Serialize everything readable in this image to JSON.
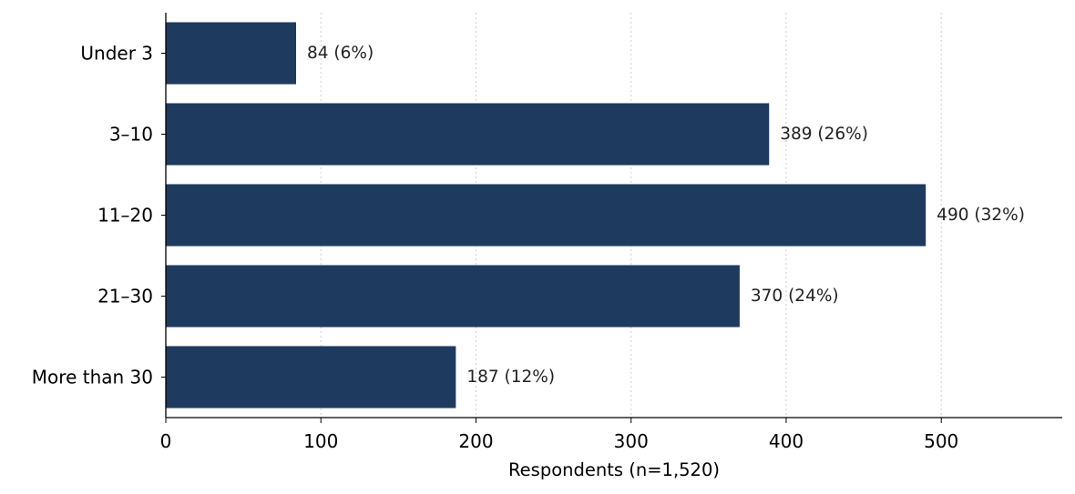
{
  "chart_data": {
    "type": "bar",
    "orientation": "horizontal",
    "categories": [
      "Under 3",
      "3–10",
      "11–20",
      "21–30",
      "More than 30"
    ],
    "values": [
      84,
      389,
      490,
      370,
      187
    ],
    "value_labels": [
      "84  (6%)",
      "389  (26%)",
      "490  (32%)",
      "370  (24%)",
      "187  (12%)"
    ],
    "title": "",
    "xlabel": "Respondents (n=1,520)",
    "ylabel": "",
    "xlim": [
      0,
      578
    ],
    "xticks": [
      0,
      100,
      200,
      300,
      400,
      500
    ],
    "xtick_labels": [
      "0",
      "100",
      "200",
      "300",
      "400",
      "500"
    ],
    "grid": "vertical dotted",
    "legend": "none",
    "colors": {
      "bar": "#1f3a5f",
      "grid": "#d0d0d0",
      "axis": "#000000"
    }
  }
}
